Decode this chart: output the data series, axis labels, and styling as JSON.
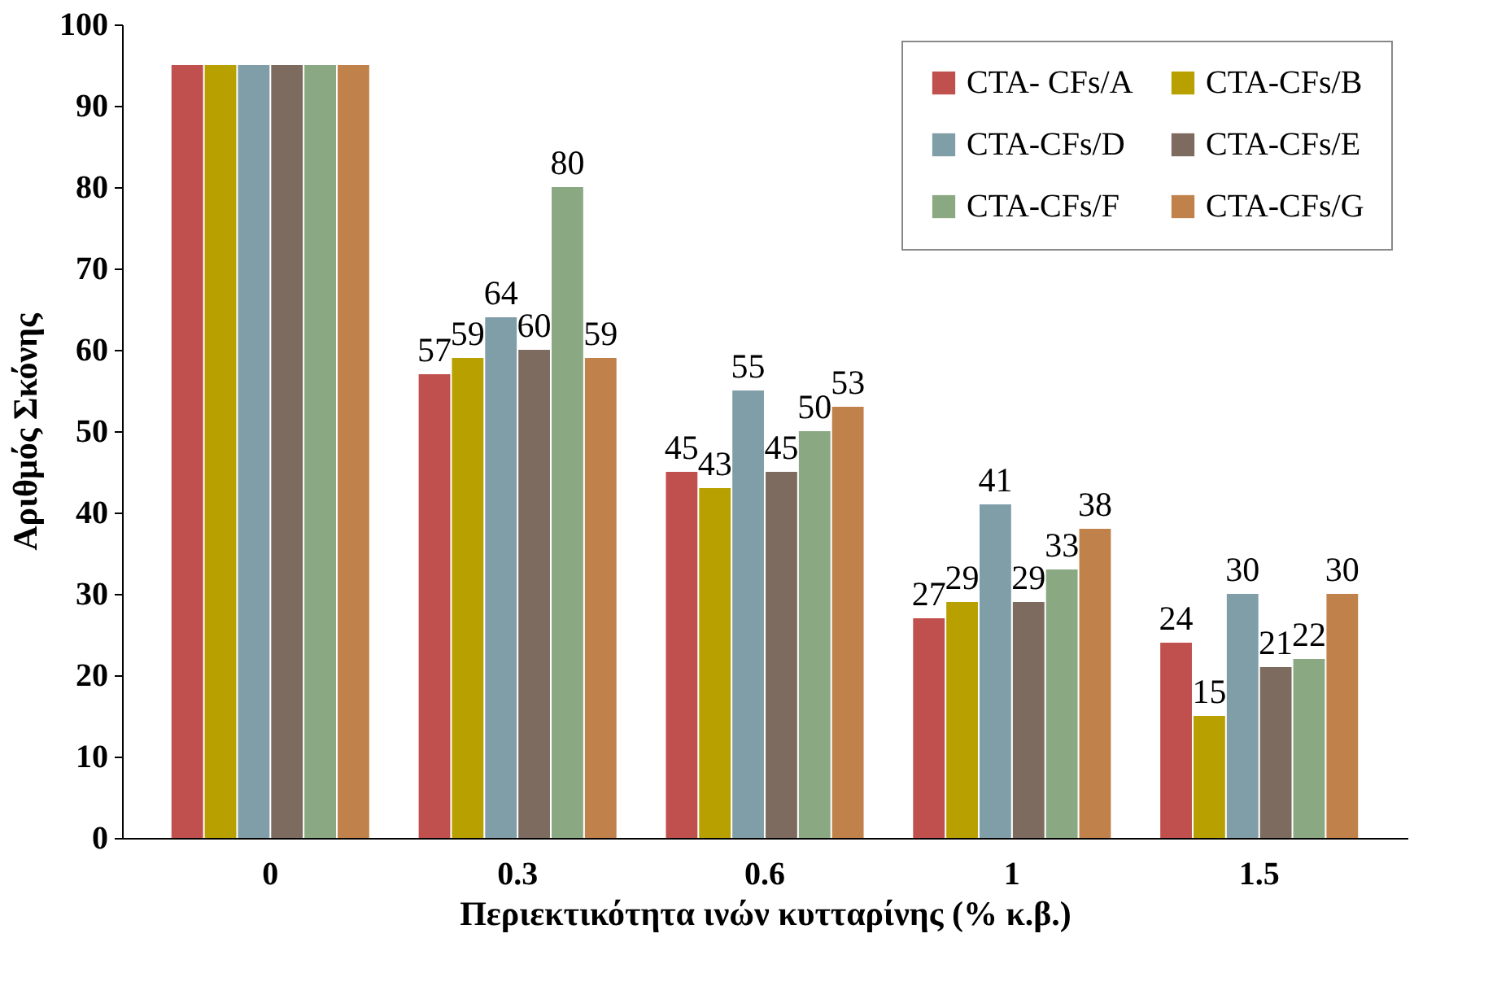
{
  "chart_data": {
    "type": "bar",
    "xlabel": "Περιεκτικότητα ινών κυτταρίνης (% κ.β.)",
    "ylabel": "Αριθμός  Σκόνης",
    "categories": [
      "0",
      "0.3",
      "0.6",
      "1",
      "1.5"
    ],
    "series": [
      {
        "name": "CTA- CFs/A",
        "color": "#c0504d",
        "values": [
          95,
          57,
          45,
          27,
          24
        ],
        "value_labels": [
          null,
          "57",
          "45",
          "27",
          "24"
        ]
      },
      {
        "name": "CTA-CFs/B",
        "color": "#b8a000",
        "values": [
          95,
          59,
          43,
          29,
          15
        ],
        "value_labels": [
          null,
          "59",
          "43",
          "29",
          "15"
        ]
      },
      {
        "name": "CTA-CFs/D",
        "color": "#7f9ea8",
        "values": [
          95,
          64,
          55,
          41,
          30
        ],
        "value_labels": [
          null,
          "64",
          "55",
          "41",
          "30"
        ]
      },
      {
        "name": "CTA-CFs/E",
        "color": "#7d6b60",
        "values": [
          95,
          60,
          45,
          29,
          21
        ],
        "value_labels": [
          null,
          "60",
          "45",
          "29",
          "21"
        ]
      },
      {
        "name": "CTA-CFs/F",
        "color": "#8aa882",
        "values": [
          95,
          80,
          50,
          33,
          22
        ],
        "value_labels": [
          null,
          "80",
          "50",
          "33",
          "22"
        ]
      },
      {
        "name": "CTA-CFs/G",
        "color": "#c0824a",
        "values": [
          95,
          59,
          53,
          38,
          30
        ],
        "value_labels": [
          null,
          "59",
          "53",
          "38",
          "30"
        ]
      }
    ],
    "ylim": [
      0,
      100
    ],
    "yticks": [
      0,
      10,
      20,
      30,
      40,
      50,
      60,
      70,
      80,
      90,
      100
    ],
    "grid": false,
    "legend": "top right"
  }
}
